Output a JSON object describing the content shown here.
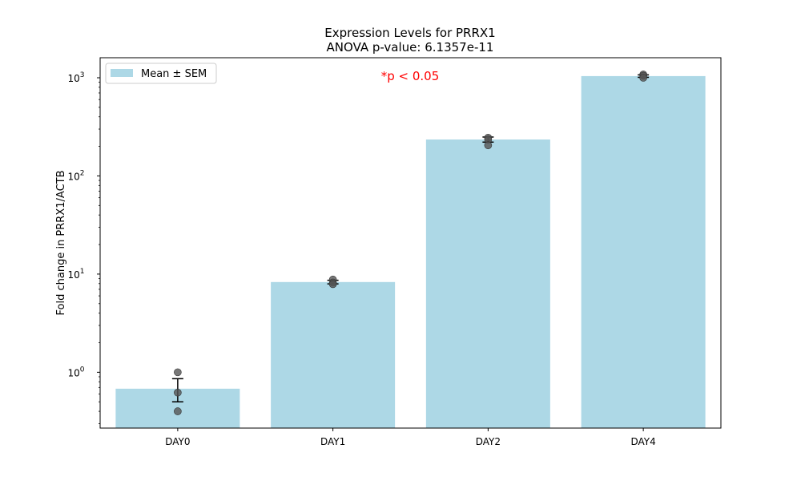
{
  "chart_data": {
    "type": "bar",
    "title_line1": "Expression Levels for PRRX1",
    "title_line2": "ANOVA p-value: 6.1357e-11",
    "ylabel": "Fold change in PRRX1/ACTB",
    "xlabel": "",
    "categories": [
      "DAY0",
      "DAY1",
      "DAY2",
      "DAY4"
    ],
    "values": [
      0.68,
      8.3,
      235,
      1040
    ],
    "sem": [
      0.18,
      0.35,
      14,
      30
    ],
    "points": [
      [
        1.0,
        0.62,
        0.4
      ],
      [
        8.8,
        8.2,
        7.9
      ],
      [
        245,
        235,
        205
      ],
      [
        1080,
        1050,
        1000
      ]
    ],
    "y_scale": "log",
    "ylim": [
      0.27,
      1600
    ],
    "y_ticks": [
      {
        "value": 1,
        "base": "10",
        "exp": "0"
      },
      {
        "value": 10,
        "base": "10",
        "exp": "1"
      },
      {
        "value": 100,
        "base": "10",
        "exp": "2"
      },
      {
        "value": 1000,
        "base": "10",
        "exp": "3"
      }
    ],
    "legend": {
      "label": "Mean ± SEM",
      "placement": "top-left"
    },
    "annotation": "*p < 0.05",
    "grid": false
  },
  "colors": {
    "bar": "#add8e6",
    "annotation": "#ff0000",
    "points": "#555555",
    "errorbar": "#000000",
    "axis": "#000000"
  }
}
